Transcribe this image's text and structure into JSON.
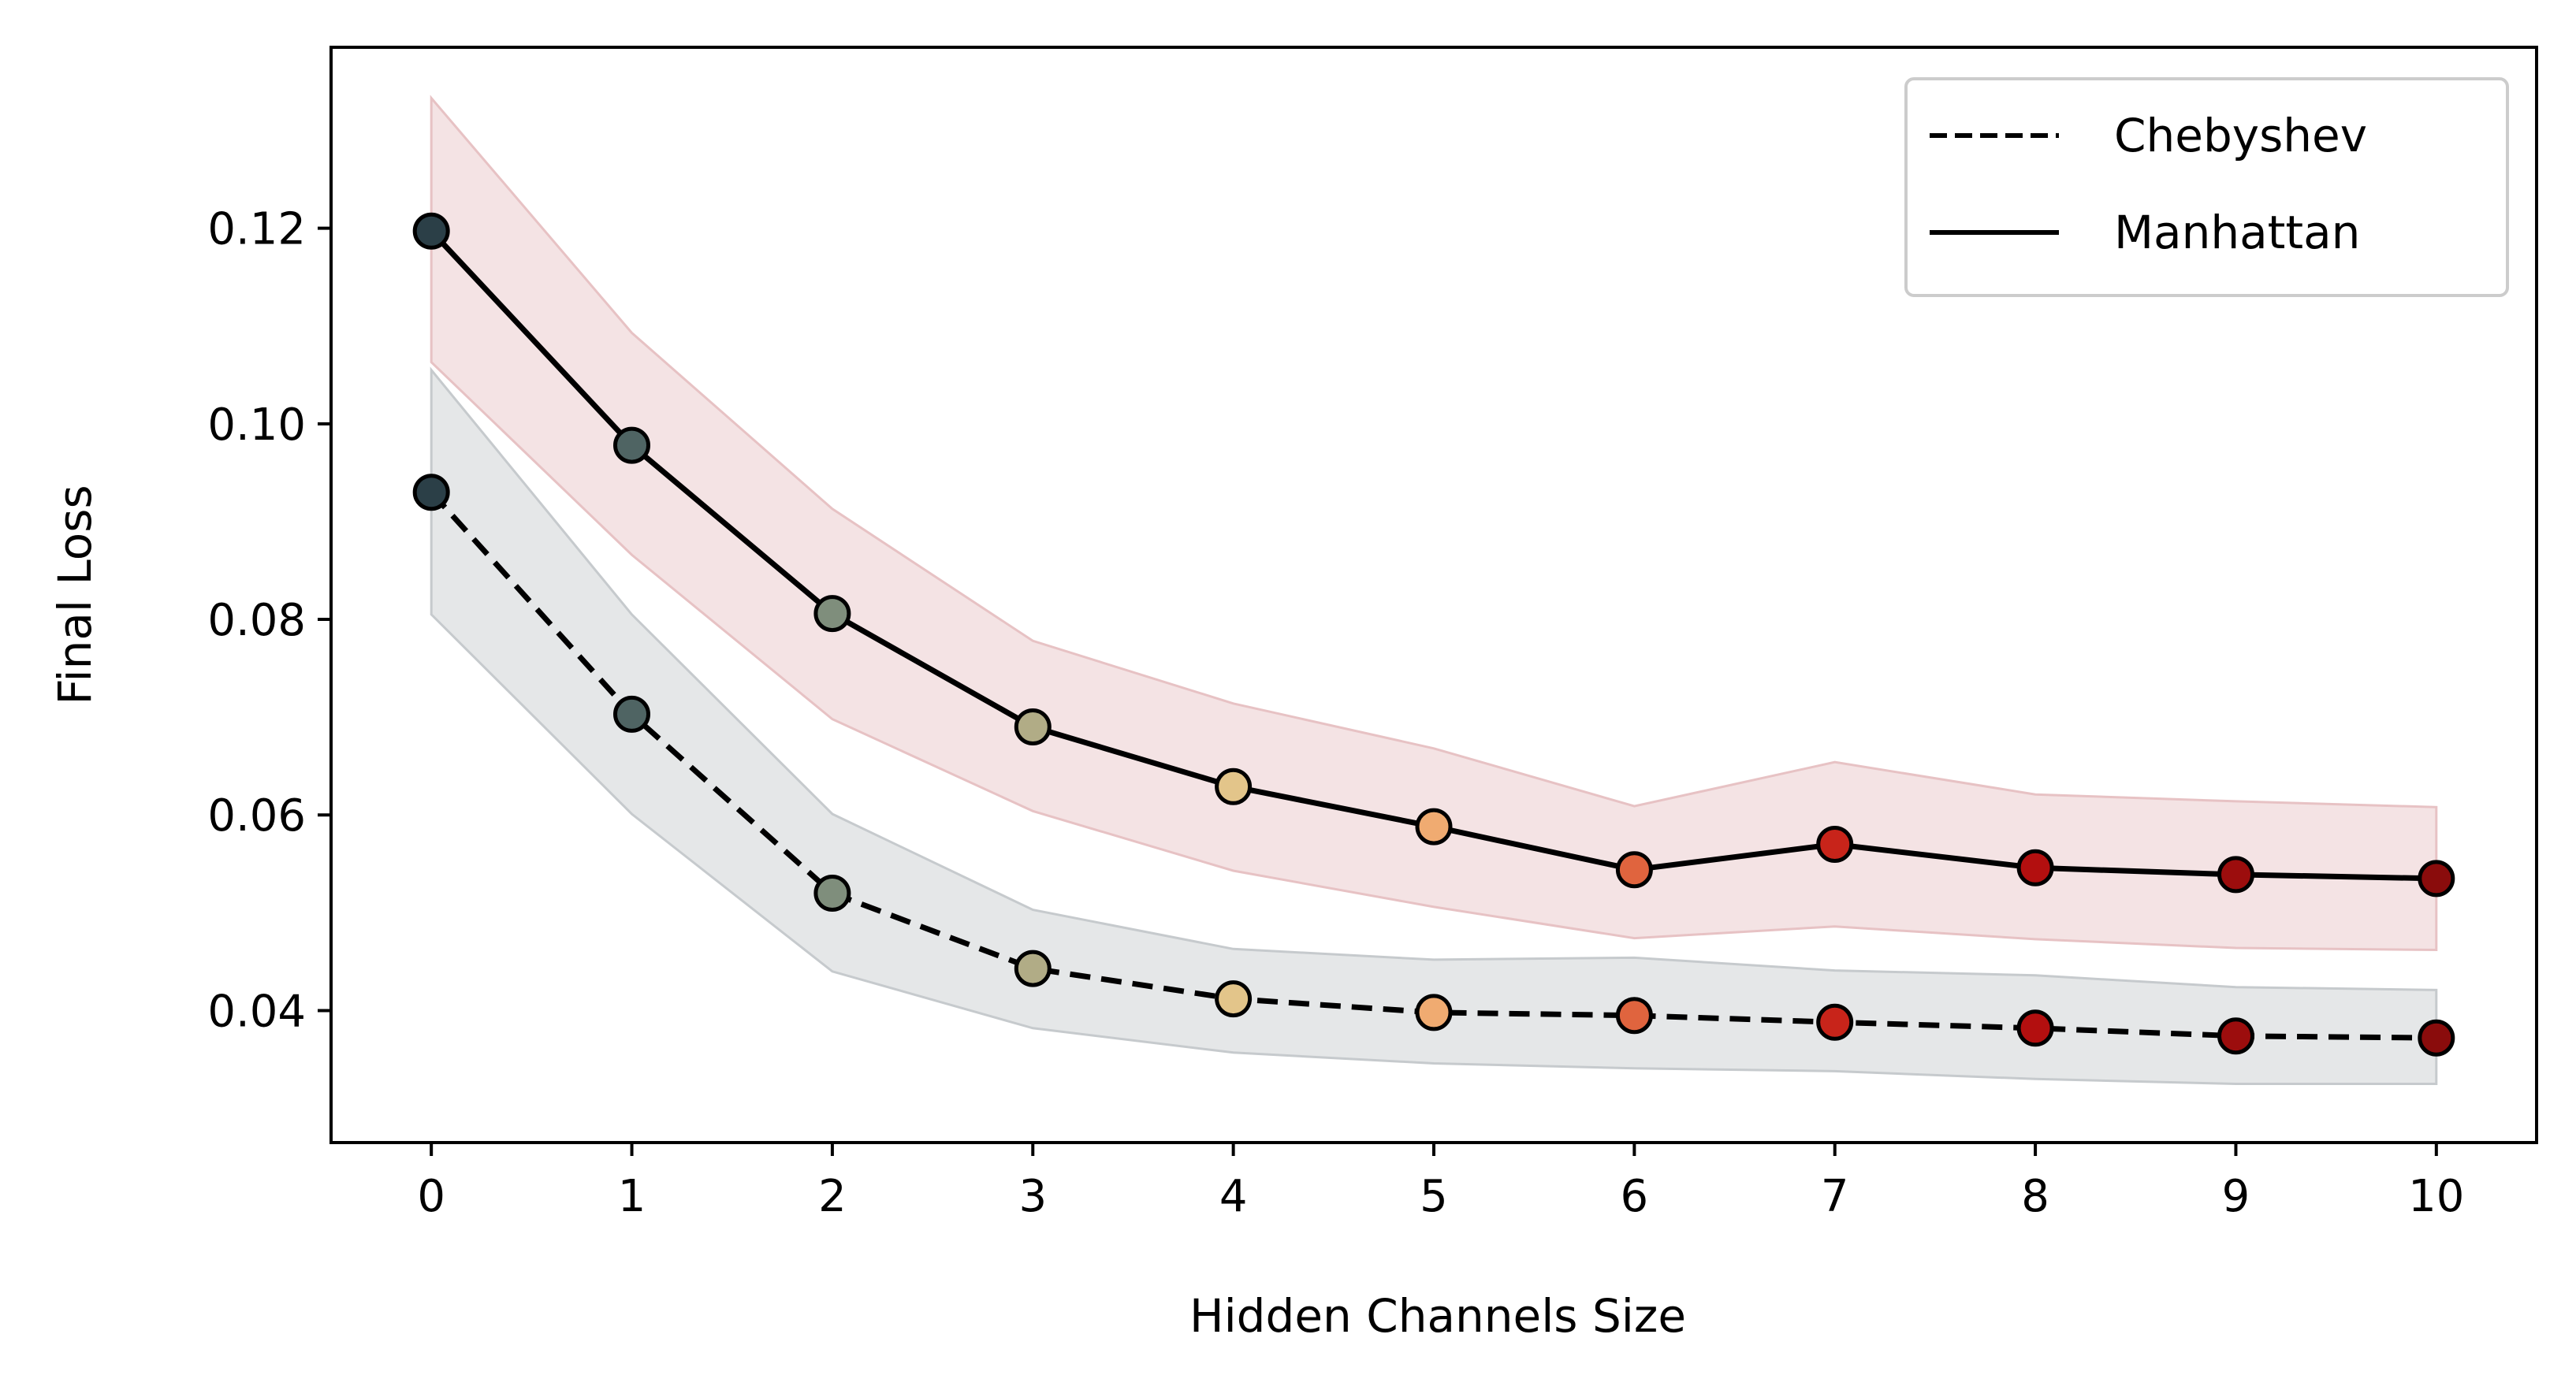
{
  "chart_data": {
    "type": "line",
    "xlabel": "Hidden Channels Size",
    "ylabel": "Final Loss",
    "x": [
      0,
      1,
      2,
      3,
      4,
      5,
      6,
      7,
      8,
      9,
      10
    ],
    "xlim": [
      -0.5,
      10.5
    ],
    "ylim": [
      0.0265,
      0.1385
    ],
    "xticks": [
      "0",
      "1",
      "2",
      "3",
      "4",
      "5",
      "6",
      "7",
      "8",
      "9",
      "10"
    ],
    "yticks": [
      "0.04",
      "0.06",
      "0.08",
      "0.10",
      "0.12"
    ],
    "ytick_values": [
      0.04,
      0.06,
      0.08,
      0.1,
      0.12
    ],
    "grid": false,
    "legend_position": "top-right",
    "point_colors": [
      "#2b3f47",
      "#4f6463",
      "#7f8e7c",
      "#b1ac86",
      "#e3c58a",
      "#f0ab71",
      "#e0643e",
      "#c8241a",
      "#b30f0f",
      "#9c0d0d",
      "#8a0c0c"
    ],
    "series": [
      {
        "name": "Chebyshev",
        "line_style": "dashed",
        "band_color": "#c6cacd",
        "values": [
          0.093,
          0.0703,
          0.052,
          0.0443,
          0.0412,
          0.0398,
          0.0395,
          0.0388,
          0.0382,
          0.0374,
          0.0372
        ],
        "lower": [
          0.0805,
          0.0601,
          0.044,
          0.0382,
          0.0357,
          0.0346,
          0.0341,
          0.0338,
          0.033,
          0.0325,
          0.0325
        ],
        "upper": [
          0.1055,
          0.0805,
          0.0601,
          0.0503,
          0.0463,
          0.0452,
          0.0454,
          0.0441,
          0.0436,
          0.0424,
          0.0421
        ]
      },
      {
        "name": "Manhattan",
        "line_style": "solid",
        "band_color": "#e7c2c4",
        "values": [
          0.1197,
          0.0978,
          0.0806,
          0.069,
          0.0629,
          0.0588,
          0.0544,
          0.057,
          0.0546,
          0.0539,
          0.0535
        ],
        "lower": [
          0.1063,
          0.0866,
          0.0698,
          0.0604,
          0.0543,
          0.0506,
          0.0474,
          0.0486,
          0.0473,
          0.0464,
          0.0462
        ],
        "upper": [
          0.1333,
          0.1093,
          0.0913,
          0.0778,
          0.0714,
          0.0668,
          0.0609,
          0.0654,
          0.0621,
          0.0614,
          0.0608
        ]
      }
    ]
  }
}
